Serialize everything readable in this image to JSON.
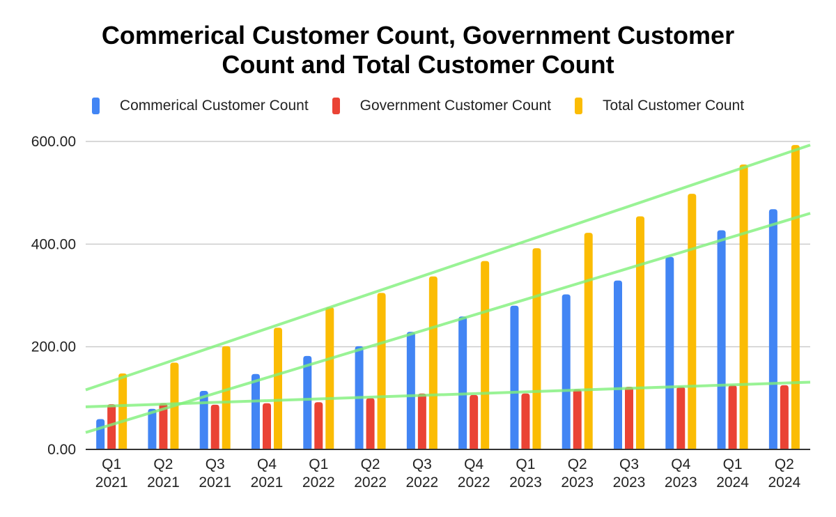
{
  "chart_data": {
    "type": "bar",
    "title_lines": [
      "Commerical Customer Count, Government Customer",
      "Count and Total Customer Count"
    ],
    "title": "Commerical Customer Count, Government Customer Count and Total Customer Count",
    "xlabel": "",
    "ylabel": "",
    "ylim": [
      0,
      600
    ],
    "yticks": [
      0,
      200,
      400,
      600
    ],
    "ytick_labels": [
      "0.00",
      "200.00",
      "400.00",
      "600.00"
    ],
    "grid": true,
    "legend_position": "top",
    "categories": [
      [
        "Q1",
        "2021"
      ],
      [
        "Q2",
        "2021"
      ],
      [
        "Q3",
        "2021"
      ],
      [
        "Q4",
        "2021"
      ],
      [
        "Q1",
        "2022"
      ],
      [
        "Q2",
        "2022"
      ],
      [
        "Q3",
        "2022"
      ],
      [
        "Q4",
        "2022"
      ],
      [
        "Q1",
        "2023"
      ],
      [
        "Q2",
        "2023"
      ],
      [
        "Q3",
        "2023"
      ],
      [
        "Q4",
        "2023"
      ],
      [
        "Q1",
        "2024"
      ],
      [
        "Q2",
        "2024"
      ]
    ],
    "series": [
      {
        "name": "Commerical Customer Count",
        "color": "#4285f4",
        "values": [
          59,
          79,
          114,
          147,
          182,
          201,
          229,
          259,
          280,
          302,
          329,
          375,
          427,
          468
        ],
        "trendline": {
          "type": "linear",
          "color": "#7ff07a",
          "start": 33,
          "end": 460
        }
      },
      {
        "name": "Government Customer Count",
        "color": "#ea4335",
        "values": [
          88,
          90,
          87,
          90,
          92,
          100,
          109,
          106,
          109,
          117,
          122,
          122,
          125,
          125
        ],
        "trendline": {
          "type": "linear",
          "color": "#7ff07a",
          "start": 83,
          "end": 131
        }
      },
      {
        "name": "Total Customer Count",
        "color": "#fbbc04",
        "values": [
          148,
          169,
          201,
          237,
          277,
          305,
          337,
          367,
          392,
          422,
          454,
          498,
          555,
          593
        ],
        "trendline": {
          "type": "linear",
          "color": "#7ff07a",
          "start": 116,
          "end": 593
        }
      }
    ]
  }
}
